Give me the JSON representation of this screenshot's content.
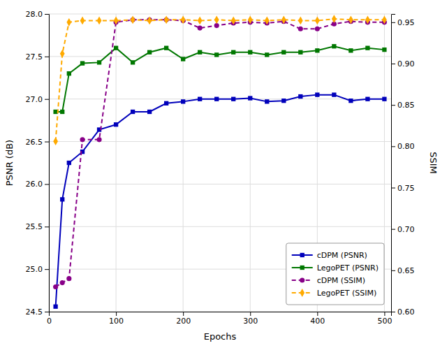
{
  "chart_data": {
    "type": "line",
    "x": [
      10,
      20,
      30,
      50,
      75,
      100,
      125,
      150,
      175,
      200,
      225,
      250,
      275,
      300,
      325,
      350,
      375,
      400,
      425,
      450,
      475,
      500
    ],
    "xlabel": "Epochs",
    "ylabel": "PSNR (dB)",
    "y2label": "SSIM",
    "xlim": [
      0,
      510
    ],
    "xticks": [
      0,
      100,
      200,
      300,
      400,
      500
    ],
    "ylim": [
      24.5,
      28.0
    ],
    "yticks": [
      24.5,
      {
        "value": 25.0,
        "label": "25.0"
      },
      25.5,
      {
        "value": 26.0,
        "label": "26.0"
      },
      26.5,
      {
        "value": 27.0,
        "label": "27.0"
      },
      27.5,
      {
        "value": 28.0,
        "label": "28.0"
      }
    ],
    "y2lim": [
      0.6,
      0.96
    ],
    "y2ticks": [
      {
        "value": 0.6,
        "label": "0.60"
      },
      0.65,
      {
        "value": 0.7,
        "label": "0.70"
      },
      0.75,
      {
        "value": 0.8,
        "label": "0.80"
      },
      0.85,
      {
        "value": 0.9,
        "label": "0.90"
      },
      0.95
    ],
    "grid": true,
    "legend": "lower right",
    "series": [
      {
        "name": "cDPM (PSNR)",
        "color": "#0000bb",
        "marker": "square",
        "line_style": "solid",
        "values": [
          24.56,
          25.82,
          26.25,
          26.38,
          26.64,
          26.7,
          26.85,
          26.85,
          26.95,
          26.97,
          27.0,
          27.0,
          27.0,
          27.01,
          26.97,
          26.98,
          27.03,
          27.05,
          27.05,
          26.98,
          27.0,
          27.0
        ]
      },
      {
        "name": "LegoPET (PSNR)",
        "color": "#007700",
        "marker": "square",
        "line_style": "solid",
        "values": [
          26.85,
          26.85,
          27.3,
          27.42,
          27.43,
          27.6,
          27.43,
          27.55,
          27.6,
          27.47,
          27.55,
          27.52,
          27.55,
          27.55,
          27.52,
          27.55,
          27.55,
          27.57,
          27.62,
          27.57,
          27.6,
          27.58
        ]
      },
      {
        "name": "cDPM (SSIM)",
        "color": "#880088",
        "marker": "circle",
        "line_style": "dashed",
        "axis": "y2",
        "values": [
          0.63,
          0.635,
          0.64,
          0.808,
          0.808,
          0.95,
          0.953,
          0.953,
          0.953,
          0.952,
          0.943,
          0.946,
          0.949,
          0.95,
          0.949,
          0.951,
          0.942,
          0.942,
          0.948,
          0.951,
          0.95,
          0.95
        ]
      },
      {
        "name": "LegoPET (SSIM)",
        "color": "#ffaa00",
        "marker": "diamond",
        "line_style": "dashed",
        "axis": "y2",
        "values": [
          0.806,
          0.912,
          0.95,
          0.952,
          0.952,
          0.952,
          0.953,
          0.952,
          0.953,
          0.953,
          0.952,
          0.953,
          0.952,
          0.953,
          0.952,
          0.953,
          0.952,
          0.952,
          0.954,
          0.953,
          0.953,
          0.953
        ]
      }
    ]
  }
}
